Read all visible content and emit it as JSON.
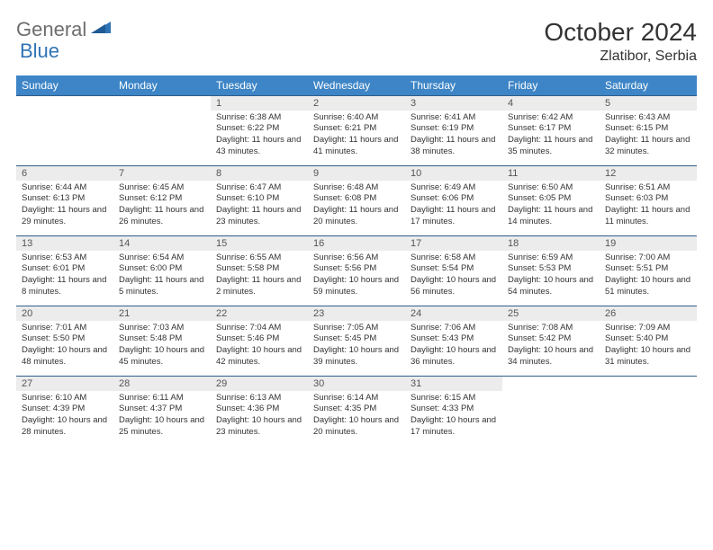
{
  "logo": {
    "general": "General",
    "blue": "Blue"
  },
  "title": "October 2024",
  "location": "Zlatibor, Serbia",
  "colors": {
    "header_bg": "#3d85c6",
    "header_text": "#ffffff",
    "daynum_bg": "#ececec",
    "border": "#2f5d8a",
    "logo_gray": "#6e6e6e",
    "logo_blue": "#2f74b5"
  },
  "day_headers": [
    "Sunday",
    "Monday",
    "Tuesday",
    "Wednesday",
    "Thursday",
    "Friday",
    "Saturday"
  ],
  "weeks": [
    {
      "nums": [
        "",
        "",
        "1",
        "2",
        "3",
        "4",
        "5"
      ],
      "cells": [
        "",
        "",
        "Sunrise: 6:38 AM\nSunset: 6:22 PM\nDaylight: 11 hours and 43 minutes.",
        "Sunrise: 6:40 AM\nSunset: 6:21 PM\nDaylight: 11 hours and 41 minutes.",
        "Sunrise: 6:41 AM\nSunset: 6:19 PM\nDaylight: 11 hours and 38 minutes.",
        "Sunrise: 6:42 AM\nSunset: 6:17 PM\nDaylight: 11 hours and 35 minutes.",
        "Sunrise: 6:43 AM\nSunset: 6:15 PM\nDaylight: 11 hours and 32 minutes."
      ]
    },
    {
      "nums": [
        "6",
        "7",
        "8",
        "9",
        "10",
        "11",
        "12"
      ],
      "cells": [
        "Sunrise: 6:44 AM\nSunset: 6:13 PM\nDaylight: 11 hours and 29 minutes.",
        "Sunrise: 6:45 AM\nSunset: 6:12 PM\nDaylight: 11 hours and 26 minutes.",
        "Sunrise: 6:47 AM\nSunset: 6:10 PM\nDaylight: 11 hours and 23 minutes.",
        "Sunrise: 6:48 AM\nSunset: 6:08 PM\nDaylight: 11 hours and 20 minutes.",
        "Sunrise: 6:49 AM\nSunset: 6:06 PM\nDaylight: 11 hours and 17 minutes.",
        "Sunrise: 6:50 AM\nSunset: 6:05 PM\nDaylight: 11 hours and 14 minutes.",
        "Sunrise: 6:51 AM\nSunset: 6:03 PM\nDaylight: 11 hours and 11 minutes."
      ]
    },
    {
      "nums": [
        "13",
        "14",
        "15",
        "16",
        "17",
        "18",
        "19"
      ],
      "cells": [
        "Sunrise: 6:53 AM\nSunset: 6:01 PM\nDaylight: 11 hours and 8 minutes.",
        "Sunrise: 6:54 AM\nSunset: 6:00 PM\nDaylight: 11 hours and 5 minutes.",
        "Sunrise: 6:55 AM\nSunset: 5:58 PM\nDaylight: 11 hours and 2 minutes.",
        "Sunrise: 6:56 AM\nSunset: 5:56 PM\nDaylight: 10 hours and 59 minutes.",
        "Sunrise: 6:58 AM\nSunset: 5:54 PM\nDaylight: 10 hours and 56 minutes.",
        "Sunrise: 6:59 AM\nSunset: 5:53 PM\nDaylight: 10 hours and 54 minutes.",
        "Sunrise: 7:00 AM\nSunset: 5:51 PM\nDaylight: 10 hours and 51 minutes."
      ]
    },
    {
      "nums": [
        "20",
        "21",
        "22",
        "23",
        "24",
        "25",
        "26"
      ],
      "cells": [
        "Sunrise: 7:01 AM\nSunset: 5:50 PM\nDaylight: 10 hours and 48 minutes.",
        "Sunrise: 7:03 AM\nSunset: 5:48 PM\nDaylight: 10 hours and 45 minutes.",
        "Sunrise: 7:04 AM\nSunset: 5:46 PM\nDaylight: 10 hours and 42 minutes.",
        "Sunrise: 7:05 AM\nSunset: 5:45 PM\nDaylight: 10 hours and 39 minutes.",
        "Sunrise: 7:06 AM\nSunset: 5:43 PM\nDaylight: 10 hours and 36 minutes.",
        "Sunrise: 7:08 AM\nSunset: 5:42 PM\nDaylight: 10 hours and 34 minutes.",
        "Sunrise: 7:09 AM\nSunset: 5:40 PM\nDaylight: 10 hours and 31 minutes."
      ]
    },
    {
      "nums": [
        "27",
        "28",
        "29",
        "30",
        "31",
        "",
        ""
      ],
      "cells": [
        "Sunrise: 6:10 AM\nSunset: 4:39 PM\nDaylight: 10 hours and 28 minutes.",
        "Sunrise: 6:11 AM\nSunset: 4:37 PM\nDaylight: 10 hours and 25 minutes.",
        "Sunrise: 6:13 AM\nSunset: 4:36 PM\nDaylight: 10 hours and 23 minutes.",
        "Sunrise: 6:14 AM\nSunset: 4:35 PM\nDaylight: 10 hours and 20 minutes.",
        "Sunrise: 6:15 AM\nSunset: 4:33 PM\nDaylight: 10 hours and 17 minutes.",
        "",
        ""
      ]
    }
  ]
}
